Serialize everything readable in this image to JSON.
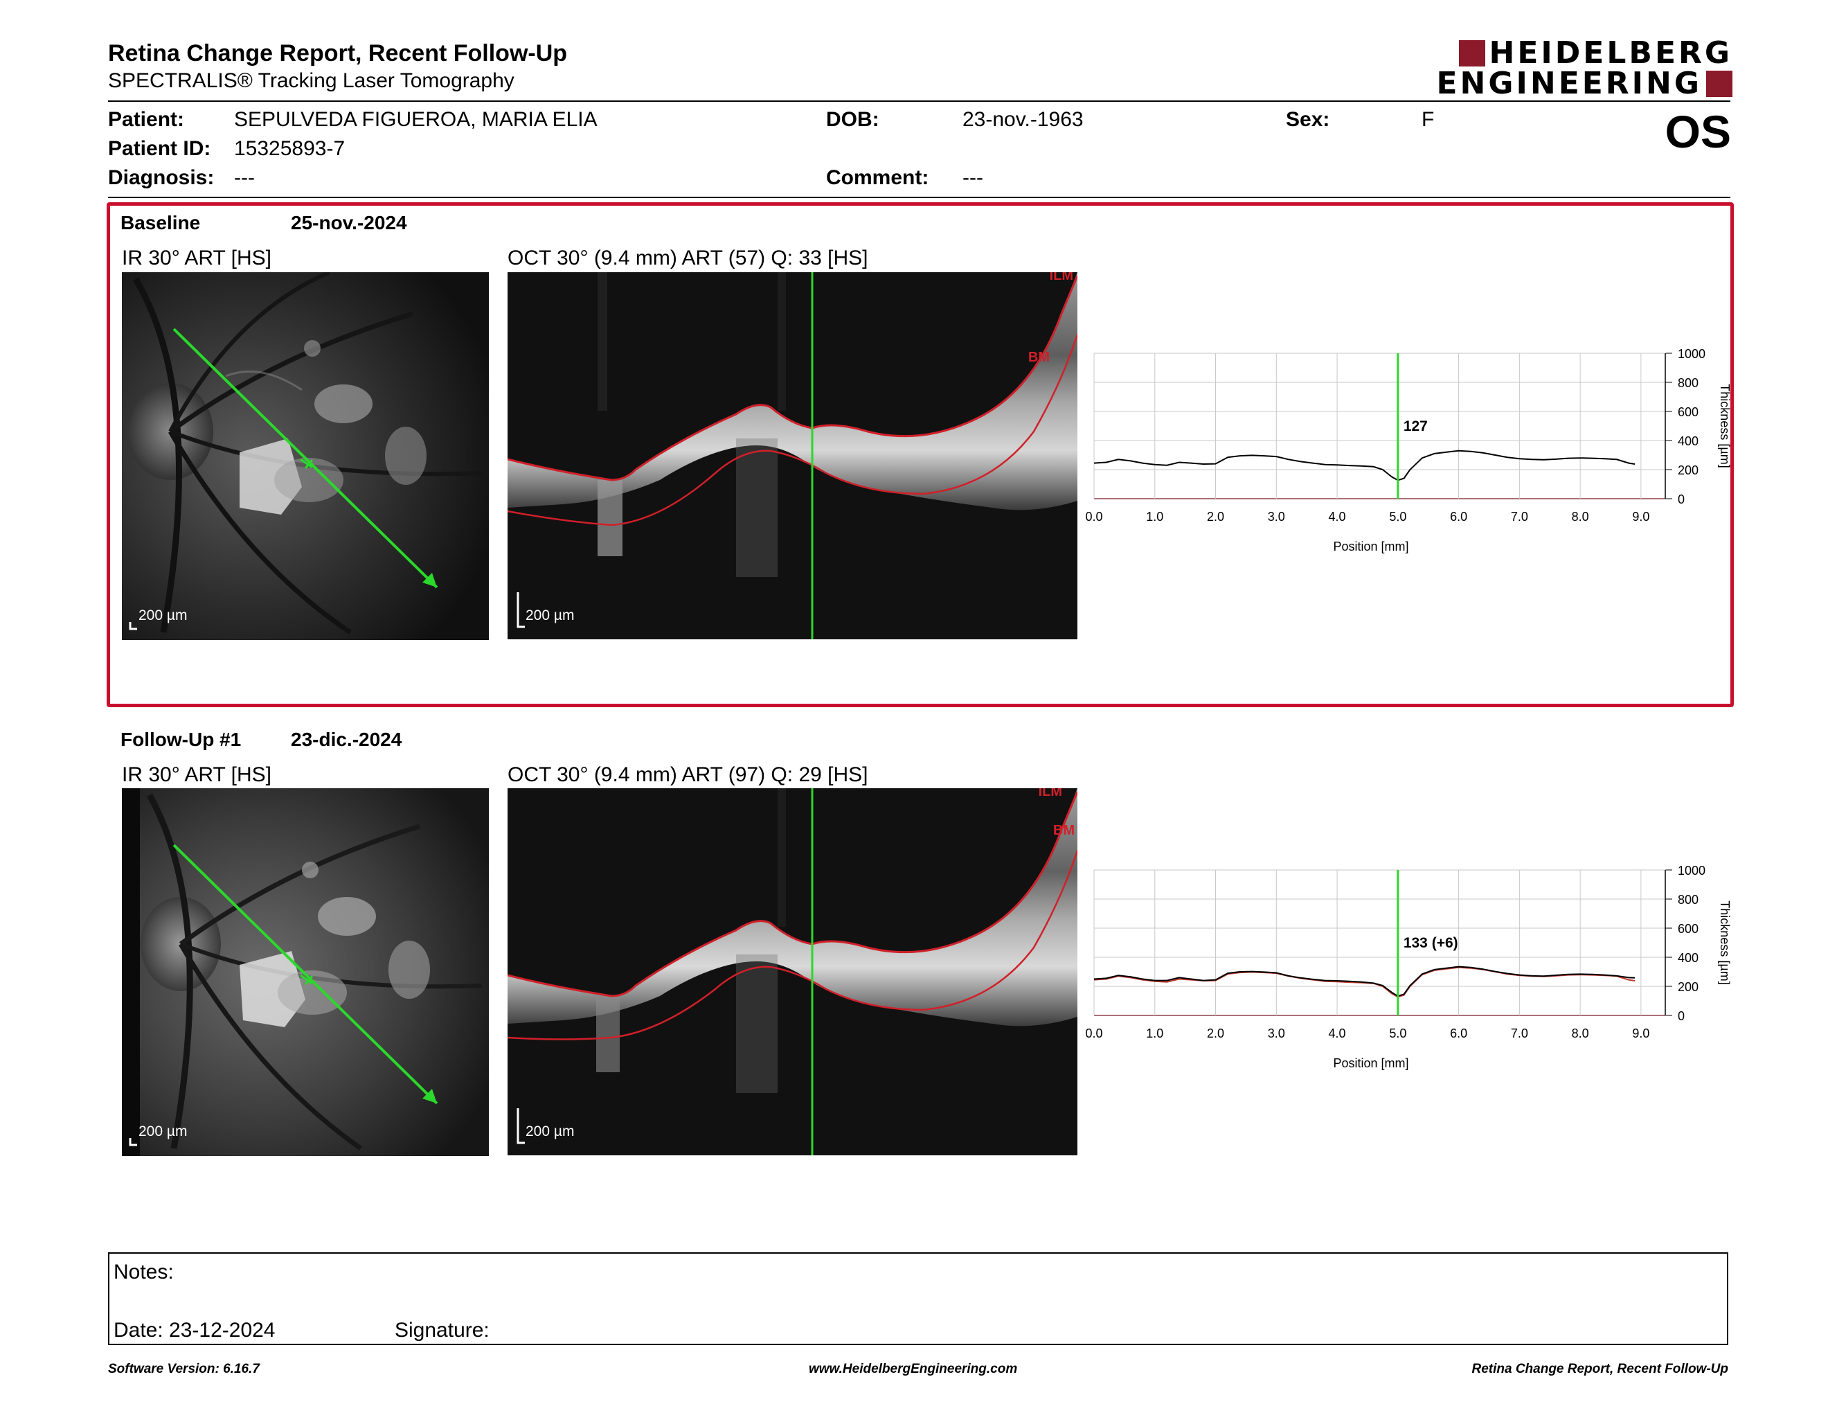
{
  "header": {
    "title": "Retina Change Report, Recent Follow-Up",
    "subtitle": "SPECTRALIS® Tracking Laser Tomography",
    "logo_line1": "HEIDELBERG",
    "logo_line2": "ENGINEERING"
  },
  "patient": {
    "patient_label": "Patient:",
    "patient_value": "SEPULVEDA FIGUEROA, MARIA ELIA",
    "dob_label": "DOB:",
    "dob_value": "23-nov.-1963",
    "sex_label": "Sex:",
    "sex_value": "F",
    "id_label": "Patient ID:",
    "id_value": "15325893-7",
    "diagnosis_label": "Diagnosis:",
    "diagnosis_value": "---",
    "comment_label": "Comment:",
    "comment_value": "---",
    "eye": "OS"
  },
  "baseline": {
    "label": "Baseline",
    "date": "25-nov.-2024",
    "ir_caption": "IR 30° ART [HS]",
    "oct_caption": "OCT 30° (9.4 mm) ART (57) Q: 33 [HS]",
    "ir_scale": "200 µm",
    "oct_scale": "200 µm",
    "ilm_label": "ILM",
    "bm_label": "BM"
  },
  "followup": {
    "label": "Follow-Up #1",
    "date": "23-dic.-2024",
    "ir_caption": "IR 30° ART [HS]",
    "oct_caption": "OCT 30° (9.4 mm) ART (97) Q: 29 [HS]",
    "ir_scale": "200 µm",
    "oct_scale": "200 µm",
    "ilm_label": "ILM",
    "bm_label": "BM"
  },
  "chart_data": [
    {
      "type": "line",
      "xlabel": "Position [mm]",
      "ylabel": "Thickness [µm]",
      "xlim": [
        0,
        9.4
      ],
      "ylim": [
        0,
        1000
      ],
      "xticks": [
        "0.0",
        "1.0",
        "2.0",
        "3.0",
        "4.0",
        "5.0",
        "6.0",
        "7.0",
        "8.0",
        "9.0"
      ],
      "yticks": [
        "0",
        "200",
        "400",
        "600",
        "800",
        "1000"
      ],
      "grid": true,
      "marker_x": 5.0,
      "marker_label": "127",
      "series": [
        {
          "color": "#000000",
          "x": [
            0.0,
            0.2,
            0.4,
            0.6,
            0.8,
            1.0,
            1.2,
            1.4,
            1.6,
            1.8,
            2.0,
            2.2,
            2.4,
            2.6,
            2.8,
            3.0,
            3.2,
            3.4,
            3.6,
            3.8,
            4.0,
            4.2,
            4.4,
            4.6,
            4.75,
            4.9,
            5.0,
            5.1,
            5.2,
            5.4,
            5.6,
            5.8,
            6.0,
            6.2,
            6.4,
            6.6,
            6.8,
            7.0,
            7.2,
            7.4,
            7.6,
            7.8,
            8.0,
            8.2,
            8.4,
            8.6,
            8.8,
            8.9
          ],
          "y": [
            245,
            250,
            270,
            260,
            245,
            235,
            230,
            250,
            245,
            238,
            240,
            285,
            295,
            298,
            295,
            290,
            270,
            255,
            245,
            235,
            232,
            228,
            225,
            220,
            200,
            150,
            127,
            140,
            200,
            280,
            310,
            320,
            330,
            325,
            315,
            300,
            285,
            275,
            270,
            268,
            272,
            278,
            280,
            278,
            275,
            270,
            245,
            238
          ]
        }
      ]
    },
    {
      "type": "line",
      "xlabel": "Position [mm]",
      "ylabel": "Thickness [µm]",
      "xlim": [
        0,
        9.4
      ],
      "ylim": [
        0,
        1000
      ],
      "xticks": [
        "0.0",
        "1.0",
        "2.0",
        "3.0",
        "4.0",
        "5.0",
        "6.0",
        "7.0",
        "8.0",
        "9.0"
      ],
      "yticks": [
        "0",
        "200",
        "400",
        "600",
        "800",
        "1000"
      ],
      "grid": true,
      "marker_x": 5.0,
      "marker_label": "133 (+6)",
      "series": [
        {
          "color": "#c0392b",
          "x": [
            0.0,
            0.2,
            0.4,
            0.6,
            0.8,
            1.0,
            1.2,
            1.4,
            1.6,
            1.8,
            2.0,
            2.2,
            2.4,
            2.6,
            2.8,
            3.0,
            3.2,
            3.4,
            3.6,
            3.8,
            4.0,
            4.2,
            4.4,
            4.6,
            4.75,
            4.9,
            5.0,
            5.1,
            5.2,
            5.4,
            5.6,
            5.8,
            6.0,
            6.2,
            6.4,
            6.6,
            6.8,
            7.0,
            7.2,
            7.4,
            7.6,
            7.8,
            8.0,
            8.2,
            8.4,
            8.6,
            8.8,
            8.9
          ],
          "y": [
            245,
            250,
            270,
            260,
            245,
            235,
            230,
            250,
            245,
            238,
            240,
            285,
            295,
            298,
            295,
            290,
            270,
            255,
            245,
            235,
            232,
            228,
            225,
            220,
            200,
            150,
            127,
            140,
            200,
            280,
            310,
            320,
            330,
            325,
            315,
            300,
            285,
            275,
            270,
            268,
            272,
            278,
            280,
            278,
            275,
            270,
            245,
            238
          ]
        },
        {
          "color": "#000000",
          "x": [
            0.0,
            0.2,
            0.4,
            0.6,
            0.8,
            1.0,
            1.2,
            1.4,
            1.6,
            1.8,
            2.0,
            2.2,
            2.4,
            2.6,
            2.8,
            3.0,
            3.2,
            3.4,
            3.6,
            3.8,
            4.0,
            4.2,
            4.4,
            4.6,
            4.75,
            4.9,
            5.0,
            5.1,
            5.2,
            5.4,
            5.6,
            5.8,
            6.0,
            6.2,
            6.4,
            6.6,
            6.8,
            7.0,
            7.2,
            7.4,
            7.6,
            7.8,
            8.0,
            8.2,
            8.4,
            8.6,
            8.8,
            8.9
          ],
          "y": [
            250,
            255,
            275,
            265,
            250,
            240,
            240,
            260,
            250,
            240,
            245,
            290,
            300,
            302,
            298,
            293,
            272,
            258,
            248,
            240,
            238,
            235,
            230,
            222,
            205,
            158,
            133,
            146,
            205,
            285,
            315,
            325,
            335,
            330,
            318,
            302,
            288,
            278,
            272,
            270,
            276,
            282,
            284,
            282,
            278,
            272,
            260,
            258
          ]
        }
      ]
    }
  ],
  "notes": {
    "notes_label": "Notes:",
    "date_text": "Date: 23-12-2024",
    "signature_label": "Signature:"
  },
  "footer": {
    "version": "Software Version: 6.16.7",
    "website": "www.HeidelbergEngineering.com",
    "report_name": "Retina Change Report, Recent Follow-Up"
  },
  "colors": {
    "brand": "#8b1a2b",
    "frame": "#c8102e",
    "scan_line": "#2bd82b",
    "segmentation": "#d0202a"
  }
}
